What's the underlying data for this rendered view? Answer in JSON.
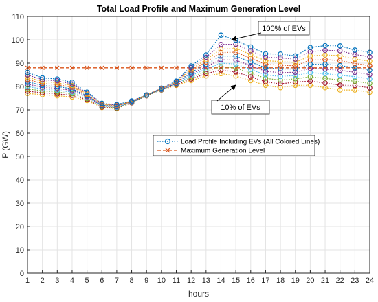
{
  "chart_data": {
    "type": "line",
    "title": "Total Load Profile and Maximum Generation Level",
    "xlabel": "hours",
    "ylabel": "P (GW)",
    "x": [
      1,
      2,
      3,
      4,
      5,
      6,
      7,
      8,
      9,
      10,
      11,
      12,
      13,
      14,
      15,
      16,
      17,
      18,
      19,
      20,
      21,
      22,
      23,
      24
    ],
    "xlim": [
      1,
      24
    ],
    "ylim": [
      0,
      110
    ],
    "yticks": [
      0,
      10,
      20,
      30,
      40,
      50,
      60,
      70,
      80,
      90,
      100,
      110
    ],
    "grid": true,
    "legend_position": "center-right",
    "legend": [
      {
        "label": "Load Profile Including EVs (All Colored Lines)",
        "style": "dotted-circle",
        "color": "#0072BD"
      },
      {
        "label": "Maximum Generation Level",
        "style": "dashed-x",
        "color": "#D95319"
      }
    ],
    "annotations": [
      {
        "text": "100% of EVs",
        "x": 14,
        "y": 102
      },
      {
        "text": "10% of EVs",
        "x": 14,
        "y": 86
      }
    ],
    "series": [
      {
        "color": "#EDB120",
        "values": [
          77,
          76.5,
          76,
          75.5,
          74,
          71,
          70.5,
          73,
          76,
          78.5,
          80.5,
          82.5,
          84.5,
          85.5,
          84.5,
          82.5,
          80.5,
          79.5,
          80.5,
          80.5,
          79.5,
          78.5,
          78.5,
          77.5
        ]
      },
      {
        "color": "#A2142F",
        "values": [
          78,
          77.3,
          76.8,
          76.2,
          74.4,
          71.2,
          70.7,
          73,
          76,
          78.5,
          80.7,
          83.2,
          85.5,
          87,
          86.2,
          84.1,
          82,
          81.1,
          81.9,
          82.3,
          81.5,
          80.6,
          80.4,
          79.4
        ]
      },
      {
        "color": "#77AC30",
        "values": [
          79,
          78.1,
          77.6,
          76.9,
          74.8,
          71.4,
          70.9,
          73.1,
          76.1,
          78.6,
          80.9,
          83.9,
          86.5,
          88.5,
          87.9,
          85.7,
          83.5,
          82.7,
          83.3,
          84.1,
          83.5,
          82.7,
          82.3,
          81.3
        ]
      },
      {
        "color": "#4DBEEE",
        "values": [
          80,
          78.9,
          78.4,
          77.6,
          75.2,
          71.6,
          71.1,
          73.2,
          76.1,
          78.7,
          81.1,
          84.6,
          87.5,
          90,
          89.6,
          87.3,
          85,
          84.3,
          84.7,
          85.9,
          85.5,
          84.8,
          84.2,
          83.2
        ]
      },
      {
        "color": "#7E2F8E",
        "values": [
          81,
          79.7,
          79.2,
          78.3,
          75.6,
          71.8,
          71.3,
          73.3,
          76.2,
          78.8,
          81.3,
          85.3,
          88.5,
          91.5,
          91.3,
          88.9,
          86.5,
          85.9,
          86.1,
          87.7,
          87.5,
          86.9,
          86.1,
          85.1
        ]
      },
      {
        "color": "#0072BD",
        "values": [
          82,
          80.5,
          80,
          79,
          76,
          72,
          71.5,
          73.4,
          76.2,
          78.9,
          81.5,
          86,
          89.5,
          93,
          93,
          90.5,
          88,
          87.5,
          87.5,
          89.5,
          89.5,
          89,
          88,
          87
        ]
      },
      {
        "color": "#D95319",
        "values": [
          83,
          81.3,
          80.8,
          79.7,
          76.4,
          72.2,
          71.7,
          73.5,
          76.3,
          79,
          81.7,
          86.7,
          90.5,
          94.5,
          94.7,
          92.1,
          89.5,
          89.1,
          88.9,
          91.3,
          91.5,
          91.1,
          89.9,
          88.9
        ]
      },
      {
        "color": "#EDB120",
        "values": [
          84,
          82.1,
          81.6,
          80.4,
          76.8,
          72.4,
          71.9,
          73.6,
          76.3,
          79.1,
          81.9,
          87.4,
          91.5,
          96,
          96.4,
          93.7,
          91,
          90.7,
          90.3,
          93.1,
          93.5,
          93.2,
          91.8,
          90.8
        ]
      },
      {
        "color": "#7E2F8E",
        "values": [
          85,
          82.9,
          82.4,
          81.1,
          77.2,
          72.6,
          72.1,
          73.7,
          76.4,
          79.2,
          82.1,
          88.1,
          92.5,
          98,
          98.1,
          95.3,
          92.5,
          92.3,
          91.7,
          94.9,
          95.5,
          95.3,
          93.7,
          92.7
        ]
      },
      {
        "color": "#0072BD",
        "values": [
          86,
          83.7,
          83.2,
          81.8,
          77.6,
          72.8,
          72.3,
          73.8,
          76.4,
          79.3,
          82.3,
          88.8,
          93.5,
          102,
          99.8,
          96.9,
          94,
          93.9,
          93.1,
          96.7,
          97.5,
          97.4,
          95.6,
          94.6
        ]
      }
    ],
    "max_generation": {
      "color": "#D95319",
      "values": [
        88,
        88,
        88,
        88,
        88,
        88,
        88,
        88,
        88,
        88,
        88,
        88,
        88,
        88,
        88,
        88,
        88,
        88,
        88,
        88,
        88,
        88,
        88,
        88
      ]
    }
  }
}
